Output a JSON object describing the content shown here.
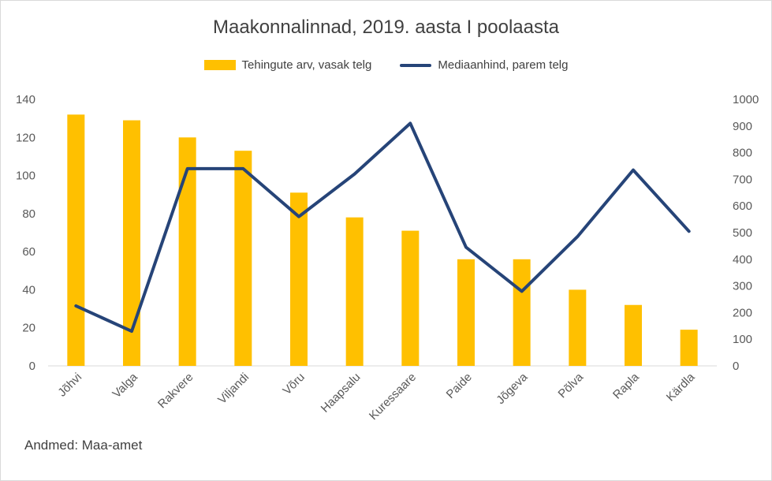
{
  "chart_data": {
    "type": "bar",
    "title": "Maakonnalinnad, 2019. aasta I poolaasta",
    "categories": [
      "Jõhvi",
      "Valga",
      "Rakvere",
      "Viljandi",
      "Võru",
      "Haapsalu",
      "Kuressaare",
      "Paide",
      "Jõgeva",
      "Põlva",
      "Rapla",
      "Kärdla"
    ],
    "series": [
      {
        "name": "Tehingute arv, vasak telg",
        "type": "bar",
        "axis": "left",
        "color": "#ffc000",
        "values": [
          132,
          129,
          120,
          113,
          91,
          78,
          71,
          56,
          56,
          40,
          32,
          19
        ]
      },
      {
        "name": "Mediaanhind, parem telg",
        "type": "line",
        "axis": "right",
        "color": "#264478",
        "values": [
          225,
          130,
          740,
          740,
          560,
          720,
          910,
          445,
          280,
          485,
          735,
          505
        ]
      }
    ],
    "y_left": {
      "min": 0,
      "max": 140,
      "ticks": [
        "0",
        "20",
        "40",
        "60",
        "80",
        "100",
        "120",
        "140"
      ]
    },
    "y_right": {
      "min": 0,
      "max": 1000,
      "ticks": [
        "0",
        "100",
        "200",
        "300",
        "400",
        "500",
        "600",
        "700",
        "800",
        "900",
        "1000"
      ]
    },
    "grid": false,
    "legend_position": "top"
  },
  "source_note": "Andmed: Maa-amet"
}
